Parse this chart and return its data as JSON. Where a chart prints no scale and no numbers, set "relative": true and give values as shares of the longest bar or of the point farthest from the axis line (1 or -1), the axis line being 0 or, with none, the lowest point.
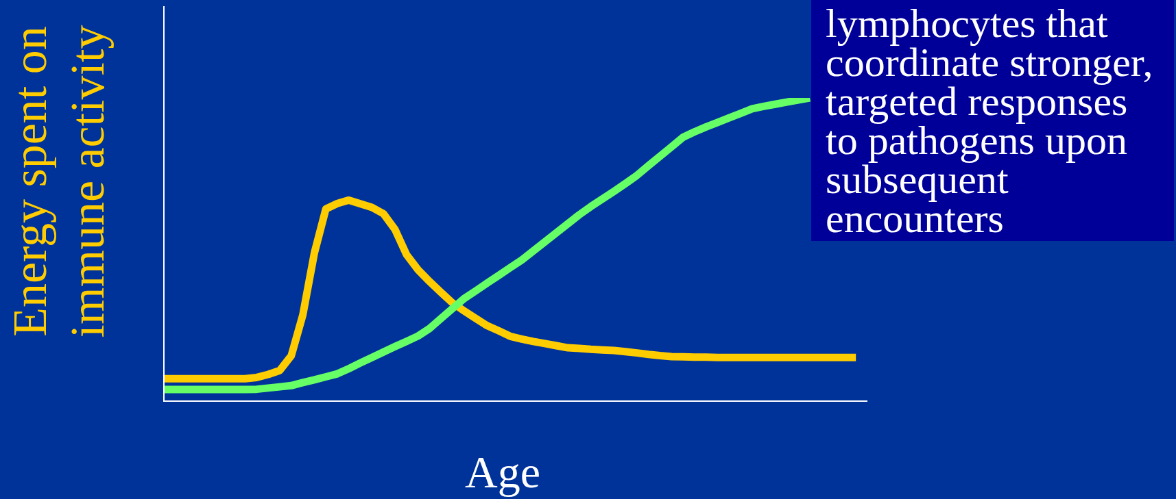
{
  "chart_data": {
    "type": "line",
    "relative": true,
    "xlabel": "Age",
    "ylabel": "Energy spent on immune activity",
    "categories": [
      null,
      null,
      null,
      null,
      null,
      null,
      null,
      null,
      null,
      null,
      null,
      null,
      null,
      null,
      null,
      null,
      null,
      null,
      null,
      null,
      null,
      null,
      null,
      null,
      null,
      null,
      null,
      null,
      null,
      null,
      null,
      null,
      null,
      null,
      null,
      null,
      null,
      null,
      null,
      null,
      null,
      null,
      null,
      null,
      null,
      null,
      null,
      null,
      null,
      null,
      null,
      null,
      null,
      null,
      null,
      null,
      null,
      null,
      null,
      null,
      null,
      null
    ],
    "series": [
      {
        "color": "#ffcc00",
        "values": [
          0.072,
          0.072,
          0.072,
          0.072,
          0.072,
          0.072,
          0.072,
          0.072,
          0.076,
          0.086,
          0.099,
          0.148,
          0.283,
          0.487,
          0.633,
          0.651,
          0.662,
          0.65,
          0.638,
          0.617,
          0.565,
          0.482,
          0.432,
          0.393,
          0.357,
          0.322,
          0.296,
          0.271,
          0.247,
          0.23,
          0.212,
          0.203,
          0.195,
          0.188,
          0.181,
          0.174,
          0.172,
          0.169,
          0.167,
          0.165,
          0.161,
          0.157,
          0.152,
          0.148,
          0.145,
          0.144,
          0.143,
          0.143,
          0.142,
          0.142,
          0.142,
          0.142,
          0.142,
          0.142,
          0.142,
          0.142,
          0.142,
          0.142,
          0.142,
          0.142,
          0.142,
          null
        ]
      },
      {
        "color": "#66ff66",
        "values": [
          0.036,
          0.036,
          0.036,
          0.036,
          0.036,
          0.036,
          0.036,
          0.036,
          0.037,
          0.041,
          0.045,
          0.049,
          0.059,
          0.068,
          0.078,
          0.088,
          0.105,
          0.124,
          0.142,
          0.16,
          0.178,
          0.195,
          0.213,
          0.238,
          0.271,
          0.304,
          0.337,
          0.362,
          0.388,
          0.413,
          0.439,
          0.464,
          0.494,
          0.524,
          0.554,
          0.584,
          0.614,
          0.641,
          0.666,
          0.691,
          0.717,
          0.744,
          0.776,
          0.807,
          0.838,
          0.87,
          0.888,
          0.904,
          0.919,
          0.934,
          0.949,
          0.964,
          0.972,
          0.979,
          0.986,
          0.993,
          1.0,
          null,
          null,
          null,
          null,
          null
        ]
      }
    ],
    "annotations": [
      "lymphocytes that coordinate stronger, targeted responses to pathogens upon subsequent encounters"
    ],
    "marker": "none",
    "line_style": "solid"
  }
}
